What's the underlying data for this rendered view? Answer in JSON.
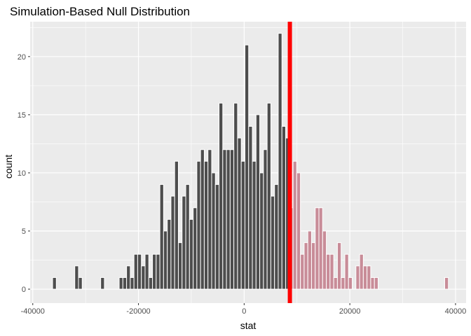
{
  "chart_data": {
    "type": "bar",
    "title": "Simulation-Based Null Distribution",
    "xlabel": "stat",
    "ylabel": "count",
    "xlim": [
      -40500,
      42000
    ],
    "ylim": [
      -1.2,
      23
    ],
    "x_ticks": [
      -40000,
      -20000,
      0,
      20000,
      40000
    ],
    "x_tick_labels": [
      "-40000",
      "-20000",
      "0",
      "20000",
      "40000"
    ],
    "y_ticks": [
      0,
      5,
      10,
      15,
      20
    ],
    "y_tick_labels": [
      "0",
      "5",
      "10",
      "15",
      "20"
    ],
    "grid": true,
    "bin_width": 700,
    "bins": [
      {
        "x": -35900,
        "count": 1
      },
      {
        "x": -31700,
        "count": 2
      },
      {
        "x": -31000,
        "count": 1
      },
      {
        "x": -26800,
        "count": 1
      },
      {
        "x": -23300,
        "count": 1
      },
      {
        "x": -22600,
        "count": 1
      },
      {
        "x": -21900,
        "count": 2
      },
      {
        "x": -21200,
        "count": 1
      },
      {
        "x": -20500,
        "count": 3
      },
      {
        "x": -19800,
        "count": 3
      },
      {
        "x": -19100,
        "count": 2
      },
      {
        "x": -18400,
        "count": 3
      },
      {
        "x": -17700,
        "count": 1
      },
      {
        "x": -17000,
        "count": 3
      },
      {
        "x": -16300,
        "count": 3
      },
      {
        "x": -15600,
        "count": 9
      },
      {
        "x": -14900,
        "count": 5
      },
      {
        "x": -14200,
        "count": 6
      },
      {
        "x": -13500,
        "count": 8
      },
      {
        "x": -12800,
        "count": 11
      },
      {
        "x": -12100,
        "count": 4
      },
      {
        "x": -11400,
        "count": 8
      },
      {
        "x": -10700,
        "count": 9
      },
      {
        "x": -10000,
        "count": 6
      },
      {
        "x": -9300,
        "count": 7
      },
      {
        "x": -8600,
        "count": 11
      },
      {
        "x": -7900,
        "count": 12
      },
      {
        "x": -7200,
        "count": 11
      },
      {
        "x": -6500,
        "count": 12
      },
      {
        "x": -5800,
        "count": 10
      },
      {
        "x": -5100,
        "count": 9
      },
      {
        "x": -4400,
        "count": 16
      },
      {
        "x": -3700,
        "count": 12
      },
      {
        "x": -3000,
        "count": 12
      },
      {
        "x": -2300,
        "count": 12
      },
      {
        "x": -1600,
        "count": 16
      },
      {
        "x": -900,
        "count": 13
      },
      {
        "x": -200,
        "count": 11
      },
      {
        "x": 500,
        "count": 21
      },
      {
        "x": 1200,
        "count": 14
      },
      {
        "x": 1900,
        "count": 11
      },
      {
        "x": 2600,
        "count": 15
      },
      {
        "x": 3300,
        "count": 10
      },
      {
        "x": 4000,
        "count": 12
      },
      {
        "x": 4700,
        "count": 16
      },
      {
        "x": 5400,
        "count": 8
      },
      {
        "x": 6100,
        "count": 9
      },
      {
        "x": 6800,
        "count": 22
      },
      {
        "x": 7500,
        "count": 14
      },
      {
        "x": 8200,
        "count": 13
      },
      {
        "x": 8900,
        "count": 7
      },
      {
        "x": 9600,
        "count": 11
      },
      {
        "x": 10300,
        "count": 10
      },
      {
        "x": 11000,
        "count": 3
      },
      {
        "x": 11700,
        "count": 4
      },
      {
        "x": 12400,
        "count": 5
      },
      {
        "x": 13100,
        "count": 4
      },
      {
        "x": 13800,
        "count": 7
      },
      {
        "x": 14500,
        "count": 7
      },
      {
        "x": 15200,
        "count": 5
      },
      {
        "x": 15900,
        "count": 3
      },
      {
        "x": 16600,
        "count": 3
      },
      {
        "x": 17300,
        "count": 1
      },
      {
        "x": 18000,
        "count": 4
      },
      {
        "x": 18700,
        "count": 1
      },
      {
        "x": 19400,
        "count": 3
      },
      {
        "x": 20100,
        "count": 1
      },
      {
        "x": 21500,
        "count": 2
      },
      {
        "x": 22200,
        "count": 3
      },
      {
        "x": 22900,
        "count": 2
      },
      {
        "x": 23600,
        "count": 2
      },
      {
        "x": 24300,
        "count": 1
      },
      {
        "x": 25000,
        "count": 1
      },
      {
        "x": 38300,
        "count": 1
      }
    ],
    "observed_stat": 8650,
    "colors": {
      "panel_background": "#ebebeb",
      "grid": "#ffffff",
      "bar_fill": "#4d4d4d",
      "shaded_bar_fill": "#c88c98",
      "bar_outline": "#ffffff",
      "observed_line": "#ff0000"
    }
  }
}
